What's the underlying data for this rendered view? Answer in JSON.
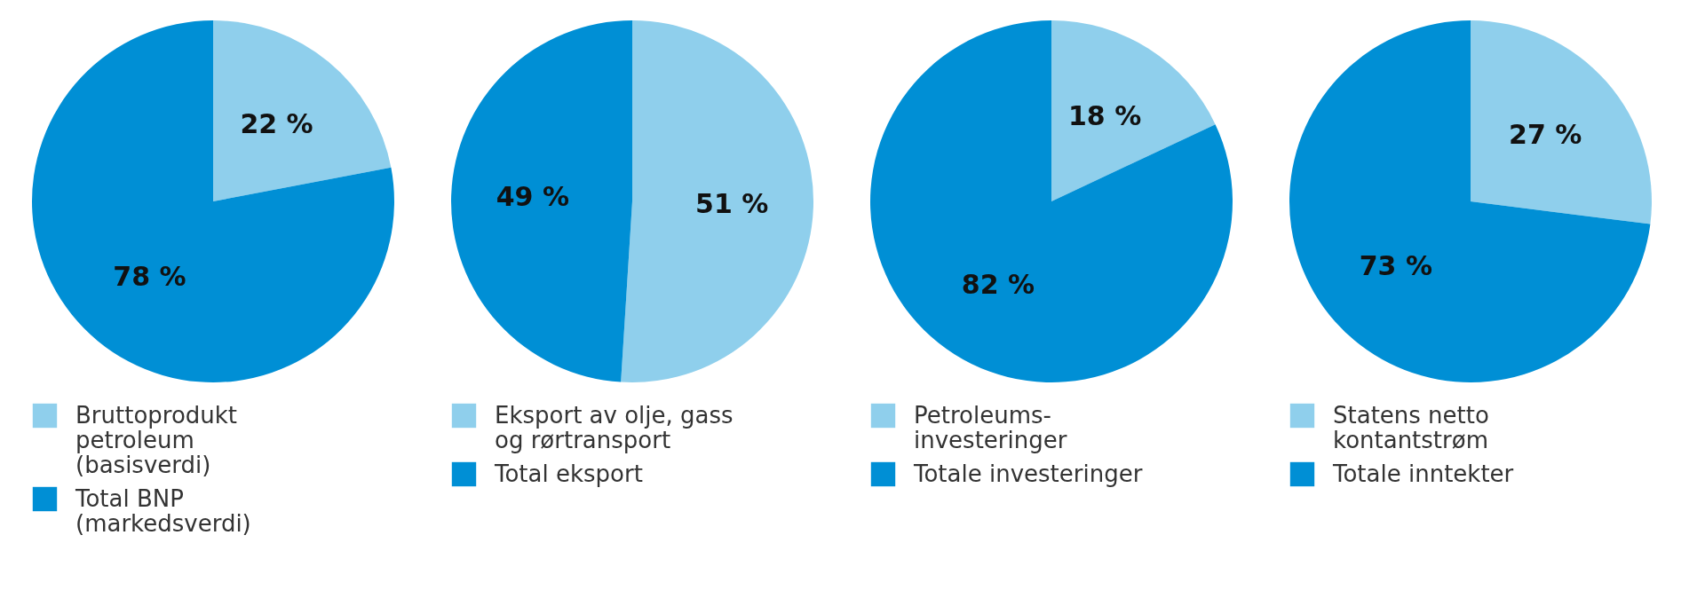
{
  "chart_data": [
    {
      "type": "pie",
      "categories": [
        "Bruttoprodukt petroleum (basisverdi)",
        "Total BNP (markedsverdi)"
      ],
      "values": [
        22,
        78
      ],
      "colors": [
        "#8fcfec",
        "#008fd5"
      ],
      "value_labels": [
        "22 %",
        "78 %"
      ],
      "legend": "bottom"
    },
    {
      "type": "pie",
      "categories": [
        "Eksport av olje, gass og rørtransport",
        "Total eksport"
      ],
      "values": [
        51,
        49
      ],
      "colors": [
        "#8fcfec",
        "#008fd5"
      ],
      "value_labels": [
        "51 %",
        "49 %"
      ],
      "legend": "bottom"
    },
    {
      "type": "pie",
      "categories": [
        "Petroleums-investeringer",
        "Totale investeringer"
      ],
      "values": [
        18,
        82
      ],
      "colors": [
        "#8fcfec",
        "#008fd5"
      ],
      "value_labels": [
        "18 %",
        "82 %"
      ],
      "legend": "bottom"
    },
    {
      "type": "pie",
      "categories": [
        "Statens netto kontantstrøm",
        "Totale inntekter"
      ],
      "values": [
        27,
        73
      ],
      "colors": [
        "#8fcfec",
        "#008fd5"
      ],
      "value_labels": [
        "27 %",
        "73 %"
      ],
      "legend": "bottom"
    }
  ]
}
